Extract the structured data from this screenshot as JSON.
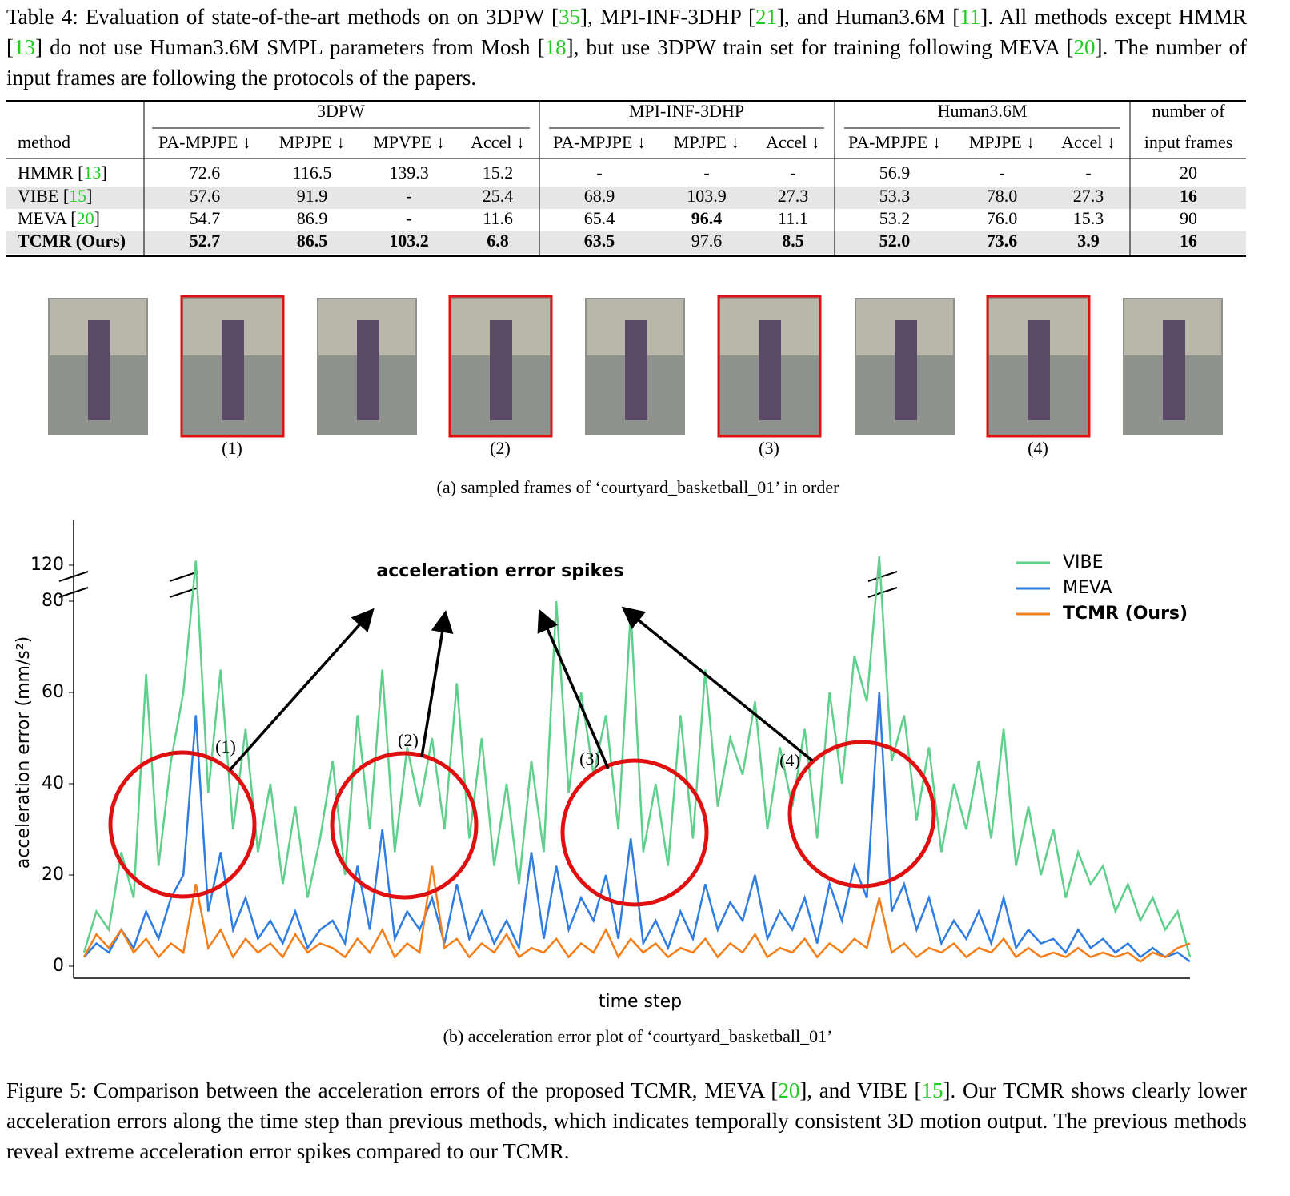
{
  "caption": [
    "Table 4: Evaluation of state-of-the-art methods on on 3DPW [",
    "35",
    "], MPI-INF-3DHP [",
    "21",
    "], and Human3.6M [",
    "11",
    "]. All methods except HMMR [",
    "13",
    "] do not use Human3.6M SMPL parameters from Mosh [",
    "18",
    "], but use 3DPW train set for training following MEVA [",
    "20",
    "]. The number of input frames are following the protocols of the papers."
  ],
  "table": {
    "method_header": "method",
    "groups": [
      "3DPW",
      "MPI-INF-3DHP",
      "Human3.6M"
    ],
    "last_header": [
      "number of",
      "input frames"
    ],
    "columns": [
      "PA-MPJPE ↓",
      "MPJPE ↓",
      "MPVPE ↓",
      "Accel ↓",
      "PA-MPJPE ↓",
      "MPJPE ↓",
      "Accel ↓",
      "PA-MPJPE ↓",
      "MPJPE ↓",
      "Accel ↓"
    ],
    "rows": [
      {
        "method": [
          "HMMR [",
          "13",
          "]"
        ],
        "cells": [
          "72.6",
          "116.5",
          "139.3",
          "15.2",
          "-",
          "-",
          "-",
          "56.9",
          "-",
          "-",
          "20"
        ],
        "bold": [],
        "shaded": false,
        "method_bold": false
      },
      {
        "method": [
          "VIBE [",
          "15",
          "]"
        ],
        "cells": [
          "57.6",
          "91.9",
          "-",
          "25.4",
          "68.9",
          "103.9",
          "27.3",
          "53.3",
          "78.0",
          "27.3",
          "16"
        ],
        "bold": [
          10
        ],
        "shaded": true,
        "method_bold": false
      },
      {
        "method": [
          "MEVA [",
          "20",
          "]"
        ],
        "cells": [
          "54.7",
          "86.9",
          "-",
          "11.6",
          "65.4",
          "96.4",
          "11.1",
          "53.2",
          "76.0",
          "15.3",
          "90"
        ],
        "bold": [
          5
        ],
        "shaded": false,
        "method_bold": false
      },
      {
        "method": [
          "TCMR (Ours)"
        ],
        "cells": [
          "52.7",
          "86.5",
          "103.2",
          "6.8",
          "63.5",
          "97.6",
          "8.5",
          "52.0",
          "73.6",
          "3.9",
          "16"
        ],
        "bold": [
          0,
          1,
          2,
          3,
          4,
          6,
          7,
          8,
          9,
          10
        ],
        "shaded": true,
        "method_bold": true
      }
    ]
  },
  "frames": {
    "labels": [
      "(1)",
      "(2)",
      "(3)",
      "(4)"
    ],
    "caption": "(a) sampled frames of ‘courtyard_basketball_01’ in order"
  },
  "chart_data": {
    "type": "line",
    "title": "acceleration error spikes",
    "annotations": [
      "(1)",
      "(2)",
      "(3)",
      "(4)"
    ],
    "xlabel": "time step",
    "ylabel": "acceleration error (mm/s²)",
    "ylim": [
      0,
      130
    ],
    "yticks": [
      0,
      20,
      40,
      60,
      80,
      120
    ],
    "y_break": [
      80,
      120
    ],
    "legend": "upper right",
    "caption": "(b) acceleration error plot of ‘courtyard_basketball_01’",
    "series": [
      {
        "name": "VIBE",
        "color": "#5fcf8c",
        "values": [
          3,
          12,
          8,
          25,
          15,
          64,
          22,
          45,
          60,
          125,
          38,
          65,
          30,
          52,
          25,
          40,
          18,
          35,
          15,
          28,
          45,
          20,
          55,
          30,
          65,
          25,
          48,
          35,
          50,
          30,
          62,
          28,
          50,
          22,
          40,
          18,
          45,
          25,
          80,
          38,
          60,
          42,
          55,
          30,
          78,
          25,
          40,
          22,
          55,
          28,
          65,
          35,
          50,
          42,
          58,
          30,
          48,
          35,
          52,
          28,
          60,
          40,
          68,
          58,
          130,
          45,
          55,
          32,
          48,
          25,
          40,
          30,
          45,
          28,
          52,
          22,
          35,
          20,
          30,
          15,
          25,
          18,
          22,
          12,
          18,
          10,
          15,
          8,
          12,
          2
        ]
      },
      {
        "name": "MEVA",
        "color": "#2f7de1",
        "values": [
          2,
          5,
          3,
          8,
          4,
          12,
          6,
          15,
          20,
          55,
          12,
          25,
          8,
          15,
          6,
          10,
          5,
          12,
          4,
          8,
          10,
          5,
          22,
          8,
          30,
          6,
          12,
          8,
          15,
          5,
          18,
          6,
          12,
          5,
          10,
          4,
          25,
          6,
          22,
          8,
          15,
          10,
          20,
          6,
          28,
          5,
          10,
          4,
          12,
          6,
          18,
          8,
          14,
          10,
          20,
          6,
          12,
          8,
          15,
          5,
          18,
          10,
          22,
          15,
          60,
          12,
          18,
          8,
          15,
          5,
          10,
          6,
          12,
          5,
          15,
          4,
          8,
          5,
          6,
          3,
          8,
          4,
          6,
          3,
          5,
          2,
          4,
          2,
          3,
          1
        ]
      },
      {
        "name": "TCMR (Ours)",
        "color": "#f47f1a",
        "values": [
          2,
          7,
          4,
          8,
          3,
          6,
          2,
          5,
          3,
          18,
          4,
          8,
          2,
          6,
          3,
          5,
          2,
          7,
          3,
          5,
          4,
          2,
          6,
          3,
          8,
          2,
          5,
          3,
          22,
          4,
          6,
          2,
          5,
          3,
          7,
          2,
          4,
          3,
          6,
          2,
          5,
          3,
          8,
          2,
          6,
          3,
          5,
          2,
          4,
          3,
          6,
          2,
          5,
          3,
          7,
          2,
          4,
          3,
          6,
          2,
          5,
          3,
          6,
          4,
          15,
          3,
          5,
          2,
          4,
          3,
          5,
          2,
          4,
          3,
          6,
          2,
          4,
          2,
          3,
          2,
          4,
          2,
          3,
          2,
          3,
          1,
          3,
          2,
          4,
          5
        ]
      }
    ]
  },
  "figure_caption": [
    "Figure 5: Comparison between the acceleration errors of the proposed TCMR, MEVA [",
    "20",
    "], and VIBE [",
    "15",
    "]. Our TCMR shows clearly lower acceleration errors along the time step than previous methods, which indicates temporally consistent 3D motion output. The previous methods reveal extreme acceleration error spikes compared to our TCMR."
  ]
}
